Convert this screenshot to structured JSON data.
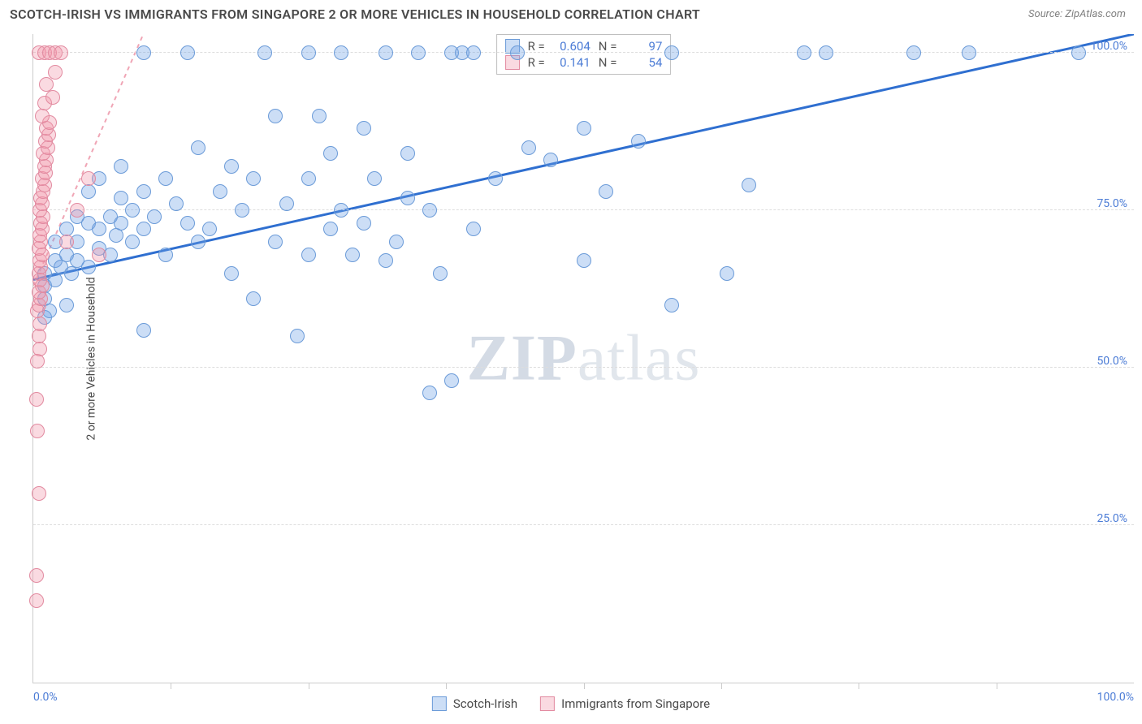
{
  "title": "SCOTCH-IRISH VS IMMIGRANTS FROM SINGAPORE 2 OR MORE VEHICLES IN HOUSEHOLD CORRELATION CHART",
  "source": "Source: ZipAtlas.com",
  "watermark_a": "ZIP",
  "watermark_b": "atlas",
  "ylabel": "2 or more Vehicles in Household",
  "chart": {
    "type": "scatter",
    "background_color": "#ffffff",
    "grid_color": "#dddddd",
    "border_color": "#cccccc",
    "xlim": [
      0,
      100
    ],
    "ylim": [
      0,
      103
    ],
    "xtick_major": [
      0,
      100
    ],
    "xtick_minor": [
      12.5,
      25,
      37.5,
      50,
      62.5,
      75,
      87.5
    ],
    "ytick_major": [
      25,
      50,
      75,
      100
    ],
    "xtick_labels": [
      "0.0%",
      "100.0%"
    ],
    "ytick_labels": [
      "25.0%",
      "50.0%",
      "75.0%",
      "100.0%"
    ],
    "tick_color": "#4d7dd6",
    "tick_fontsize": 14,
    "label_fontsize": 14,
    "title_fontsize": 16,
    "point_radius": 9,
    "series": [
      {
        "name": "Scotch-Irish",
        "fill": "rgba(110,160,230,0.35)",
        "stroke": "#6b9bd8",
        "trend_color": "#2f6fd0",
        "trend_width": 3,
        "trend_dash": "none",
        "trend": {
          "x1": 0,
          "y1": 64,
          "x2": 100,
          "y2": 103
        },
        "R": "0.604",
        "N": "97",
        "points": [
          [
            1,
            58
          ],
          [
            1,
            61
          ],
          [
            1,
            63
          ],
          [
            1,
            65
          ],
          [
            1.5,
            59
          ],
          [
            2,
            64
          ],
          [
            2,
            67
          ],
          [
            2,
            70
          ],
          [
            2.5,
            66
          ],
          [
            3,
            60
          ],
          [
            3,
            68
          ],
          [
            3,
            72
          ],
          [
            3.5,
            65
          ],
          [
            4,
            67
          ],
          [
            4,
            70
          ],
          [
            4,
            74
          ],
          [
            5,
            66
          ],
          [
            5,
            73
          ],
          [
            5,
            78
          ],
          [
            6,
            69
          ],
          [
            6,
            72
          ],
          [
            6,
            80
          ],
          [
            7,
            68
          ],
          [
            7,
            74
          ],
          [
            7.5,
            71
          ],
          [
            8,
            73
          ],
          [
            8,
            77
          ],
          [
            8,
            82
          ],
          [
            9,
            70
          ],
          [
            9,
            75
          ],
          [
            10,
            56
          ],
          [
            10,
            72
          ],
          [
            10,
            78
          ],
          [
            10,
            100
          ],
          [
            11,
            74
          ],
          [
            12,
            68
          ],
          [
            12,
            80
          ],
          [
            13,
            76
          ],
          [
            14,
            73
          ],
          [
            14,
            100
          ],
          [
            15,
            70
          ],
          [
            15,
            85
          ],
          [
            16,
            72
          ],
          [
            17,
            78
          ],
          [
            18,
            65
          ],
          [
            18,
            82
          ],
          [
            19,
            75
          ],
          [
            20,
            61
          ],
          [
            20,
            80
          ],
          [
            21,
            100
          ],
          [
            22,
            70
          ],
          [
            22,
            90
          ],
          [
            23,
            76
          ],
          [
            24,
            55
          ],
          [
            25,
            68
          ],
          [
            25,
            80
          ],
          [
            25,
            100
          ],
          [
            26,
            90
          ],
          [
            27,
            72
          ],
          [
            27,
            84
          ],
          [
            28,
            75
          ],
          [
            28,
            100
          ],
          [
            29,
            68
          ],
          [
            30,
            73
          ],
          [
            30,
            88
          ],
          [
            31,
            80
          ],
          [
            32,
            67
          ],
          [
            32,
            100
          ],
          [
            33,
            70
          ],
          [
            34,
            77
          ],
          [
            34,
            84
          ],
          [
            35,
            100
          ],
          [
            36,
            46
          ],
          [
            36,
            75
          ],
          [
            37,
            65
          ],
          [
            38,
            48
          ],
          [
            38,
            100
          ],
          [
            39,
            100
          ],
          [
            40,
            72
          ],
          [
            40,
            100
          ],
          [
            42,
            80
          ],
          [
            44,
            100
          ],
          [
            45,
            85
          ],
          [
            47,
            83
          ],
          [
            50,
            67
          ],
          [
            50,
            88
          ],
          [
            52,
            78
          ],
          [
            55,
            86
          ],
          [
            58,
            60
          ],
          [
            58,
            100
          ],
          [
            63,
            65
          ],
          [
            65,
            79
          ],
          [
            70,
            100
          ],
          [
            72,
            100
          ],
          [
            80,
            100
          ],
          [
            85,
            100
          ],
          [
            95,
            100
          ]
        ]
      },
      {
        "name": "Immigrants from Singapore",
        "fill": "rgba(240,150,170,0.35)",
        "stroke": "#e28aa0",
        "trend_color": "#f0a5b5",
        "trend_width": 2,
        "trend_dash": "5,5",
        "trend": {
          "x1": 0,
          "y1": 63,
          "x2": 10,
          "y2": 103
        },
        "R": "0.141",
        "N": "54",
        "points": [
          [
            0.3,
            13
          ],
          [
            0.3,
            17
          ],
          [
            0.5,
            30
          ],
          [
            0.4,
            40
          ],
          [
            0.3,
            45
          ],
          [
            0.4,
            51
          ],
          [
            0.6,
            53
          ],
          [
            0.5,
            55
          ],
          [
            0.6,
            57
          ],
          [
            0.4,
            59
          ],
          [
            0.5,
            60
          ],
          [
            0.7,
            61
          ],
          [
            0.5,
            62
          ],
          [
            0.8,
            63
          ],
          [
            0.6,
            64
          ],
          [
            0.5,
            65
          ],
          [
            0.7,
            66
          ],
          [
            0.6,
            67
          ],
          [
            0.8,
            68
          ],
          [
            0.5,
            69
          ],
          [
            0.7,
            70
          ],
          [
            0.6,
            71
          ],
          [
            0.8,
            72
          ],
          [
            0.7,
            73
          ],
          [
            0.9,
            74
          ],
          [
            0.6,
            75
          ],
          [
            0.8,
            76
          ],
          [
            0.7,
            77
          ],
          [
            0.9,
            78
          ],
          [
            1.0,
            79
          ],
          [
            0.8,
            80
          ],
          [
            1.1,
            81
          ],
          [
            1.0,
            82
          ],
          [
            1.2,
            83
          ],
          [
            0.9,
            84
          ],
          [
            1.3,
            85
          ],
          [
            1.1,
            86
          ],
          [
            1.4,
            87
          ],
          [
            1.2,
            88
          ],
          [
            1.5,
            89
          ],
          [
            0.8,
            90
          ],
          [
            1.0,
            92
          ],
          [
            1.8,
            93
          ],
          [
            1.2,
            95
          ],
          [
            2.0,
            97
          ],
          [
            0.5,
            100
          ],
          [
            1.0,
            100
          ],
          [
            1.5,
            100
          ],
          [
            2.0,
            100
          ],
          [
            2.5,
            100
          ],
          [
            3.0,
            70
          ],
          [
            4.0,
            75
          ],
          [
            5.0,
            80
          ],
          [
            6.0,
            68
          ]
        ]
      }
    ]
  },
  "stats_labels": {
    "R": "R =",
    "N": "N ="
  },
  "legend": {
    "series1": "Scotch-Irish",
    "series2": "Immigrants from Singapore"
  }
}
